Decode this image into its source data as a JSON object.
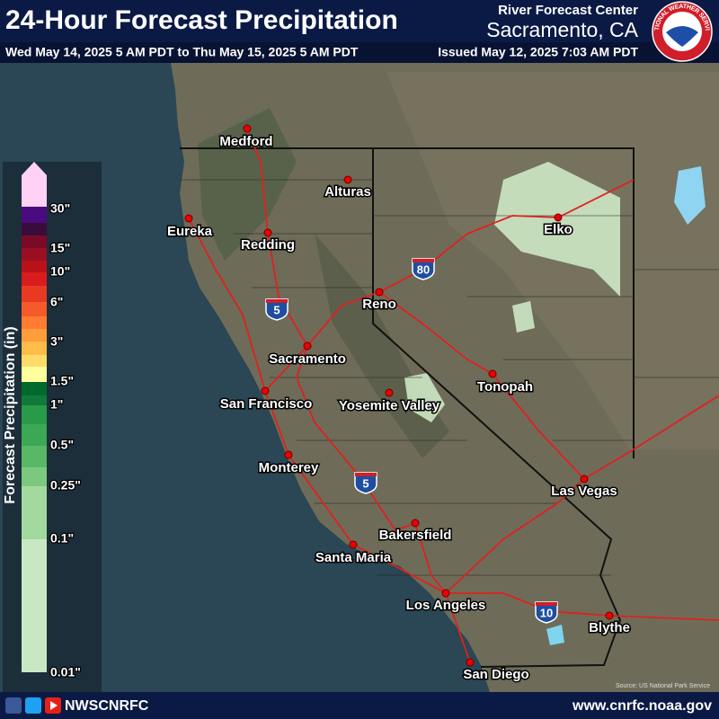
{
  "header": {
    "title": "24-Hour Forecast Precipitation",
    "valid_period": "Wed May 14, 2025 5 AM PDT to Thu May 15, 2025 5 AM PDT",
    "office_line1": "River Forecast Center",
    "office_line2": "Sacramento, CA",
    "issued": "Issued May 12, 2025 7:03 AM PDT",
    "logo_text": "NATIONAL WEATHER SERVICE"
  },
  "legend": {
    "title": "Forecast Precipitation (in)",
    "labels": [
      "30\"",
      "15\"",
      "10\"",
      "6\"",
      "3\"",
      "1.5\"",
      "1\"",
      "0.5\"",
      "0.25\"",
      "0.1\"",
      "0.01\""
    ]
  },
  "map": {
    "cities": [
      "Medford",
      "Alturas",
      "Eureka",
      "Redding",
      "Elko",
      "Reno",
      "Sacramento",
      "San Francisco",
      "Yosemite Valley",
      "Tonopah",
      "Monterey",
      "Las Vegas",
      "Bakersfield",
      "Santa Maria",
      "Los Angeles",
      "Blythe",
      "San Diego"
    ],
    "highways": [
      "5",
      "80",
      "5",
      "10"
    ],
    "source": "Source: US National Park Service"
  },
  "footer": {
    "handle": "NWSCNRFC",
    "url": "www.cnrfc.noaa.gov"
  }
}
